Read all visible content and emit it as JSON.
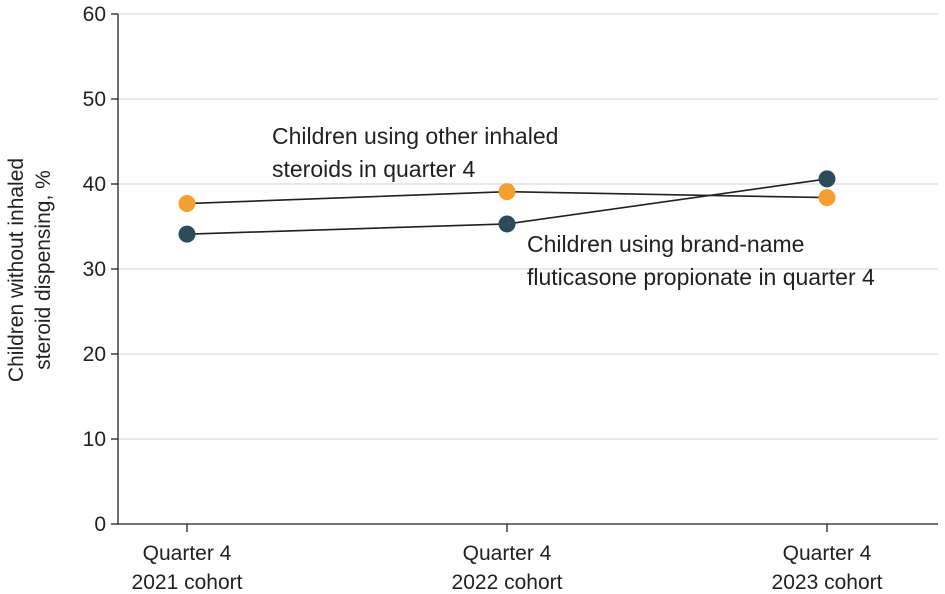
{
  "colors": {
    "other_inhaled": "#f5a02c",
    "brand_name": "#2b4c5a",
    "line": "#231f20",
    "grid": "#d9d9d9",
    "axis": "#231f20"
  },
  "chart_data": {
    "type": "line",
    "ylabel": [
      "Children without inhaled",
      "steroid dispensing, %"
    ],
    "xlabel": "",
    "ylim": [
      0,
      60
    ],
    "yticks": [
      "0",
      "10",
      "20",
      "30",
      "40",
      "50",
      "60"
    ],
    "grid": "horizontal",
    "categories": [
      [
        "Quarter 4",
        "2021 cohort"
      ],
      [
        "Quarter 4",
        "2022 cohort"
      ],
      [
        "Quarter 4",
        "2023 cohort"
      ]
    ],
    "series": [
      {
        "key": "other",
        "annotation": [
          "Children using other inhaled",
          "steroids in quarter 4"
        ],
        "values": [
          37.7,
          39.1,
          38.4
        ]
      },
      {
        "key": "brand",
        "annotation": [
          "Children using brand-name",
          "fluticasone propionate in quarter 4"
        ],
        "values": [
          34.1,
          35.3,
          40.6
        ]
      }
    ]
  }
}
